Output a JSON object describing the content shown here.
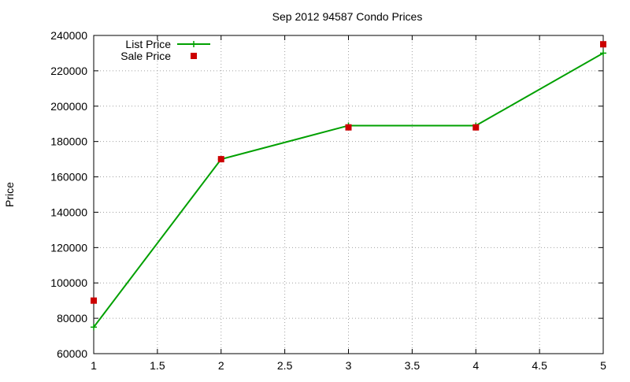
{
  "chart_data": {
    "type": "line",
    "title": "Sep 2012 94587 Condo Prices",
    "xlabel": "",
    "ylabel": "Price",
    "xlim": [
      1,
      5
    ],
    "ylim": [
      60000,
      240000
    ],
    "xticks": [
      1,
      1.5,
      2,
      2.5,
      3,
      3.5,
      4,
      4.5,
      5
    ],
    "xtick_labels": [
      "1",
      "1.5",
      "2",
      "2.5",
      "3",
      "3.5",
      "4",
      "4.5",
      "5"
    ],
    "yticks": [
      60000,
      80000,
      100000,
      120000,
      140000,
      160000,
      180000,
      200000,
      220000,
      240000
    ],
    "ytick_labels": [
      "60000",
      "80000",
      "100000",
      "120000",
      "140000",
      "160000",
      "180000",
      "200000",
      "220000",
      "240000"
    ],
    "grid": true,
    "legend_position": "top-left",
    "series": [
      {
        "name": "List Price",
        "style": "line-with-plus-markers",
        "color": "#00a000",
        "x": [
          1,
          2,
          3,
          4,
          5
        ],
        "y": [
          75000,
          170000,
          189000,
          189000,
          230000
        ]
      },
      {
        "name": "Sale Price",
        "style": "square-markers",
        "color": "#cc0000",
        "x": [
          1,
          2,
          3,
          4,
          5
        ],
        "y": [
          90000,
          170000,
          188000,
          188000,
          235000
        ]
      }
    ]
  }
}
